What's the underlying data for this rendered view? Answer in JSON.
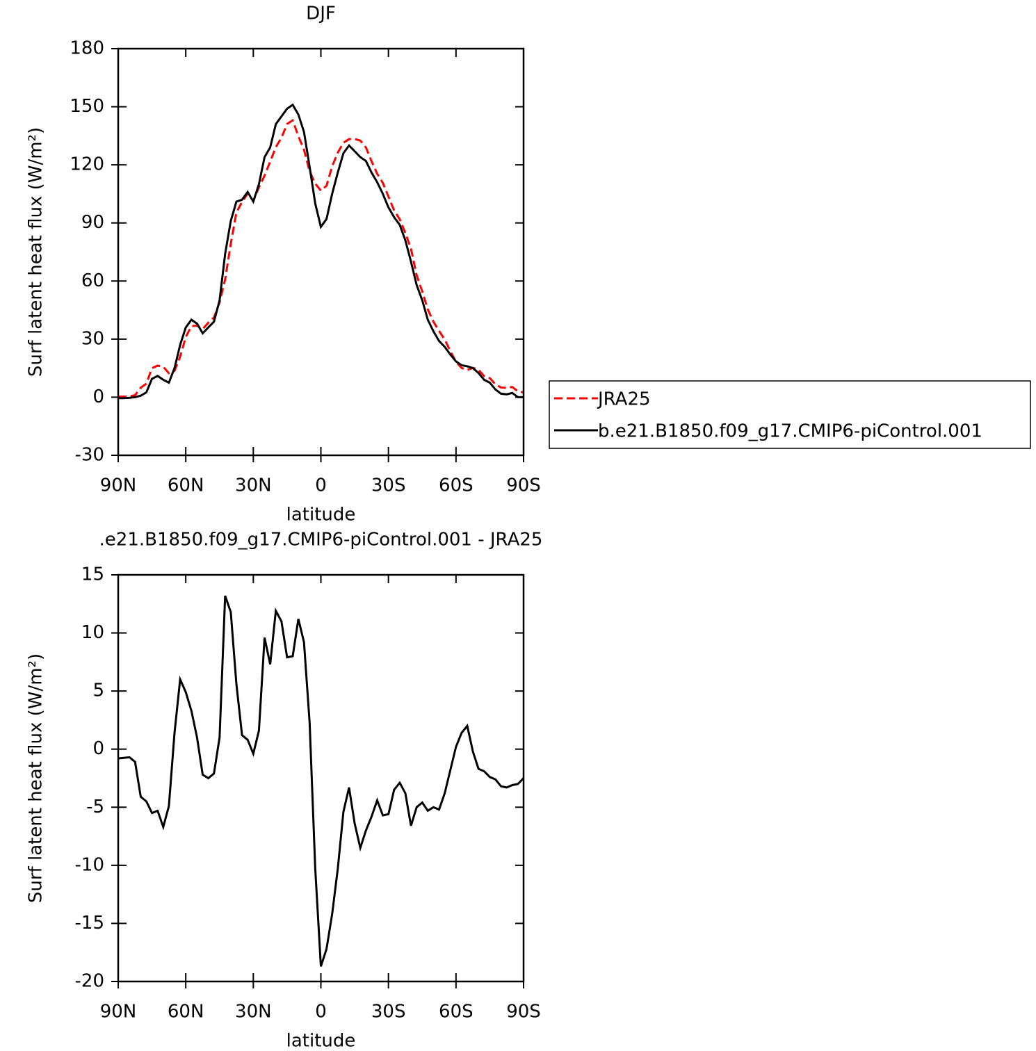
{
  "chart_data": [
    {
      "type": "line",
      "title": "DJF",
      "xlabel": "latitude",
      "ylabel": "Surf latent heat flux (W/m²)",
      "x": [
        90,
        87.5,
        85,
        82.5,
        80,
        77.5,
        75,
        72.5,
        70,
        67.5,
        65,
        62.5,
        60,
        57.5,
        55,
        52.5,
        50,
        47.5,
        45,
        42.5,
        40,
        37.5,
        35,
        32.5,
        30,
        27.5,
        25,
        22.5,
        20,
        17.5,
        15,
        12.5,
        10,
        7.5,
        5,
        2.5,
        0,
        -2.5,
        -5,
        -7.5,
        -10,
        -12.5,
        -15,
        -17.5,
        -20,
        -22.5,
        -25,
        -27.5,
        -30,
        -32.5,
        -35,
        -37.5,
        -40,
        -42.5,
        -45,
        -47.5,
        -50,
        -52.5,
        -55,
        -57.5,
        -60,
        -62.5,
        -65,
        -67.5,
        -70,
        -72.5,
        -75,
        -77.5,
        -80,
        -82.5,
        -85,
        -87.5,
        -90
      ],
      "series": [
        {
          "name": "JRA25",
          "color": "#ff0000",
          "dash": true,
          "values": [
            0.3,
            0.3,
            0.4,
            1.1,
            4.9,
            7,
            15,
            16.3,
            15.7,
            12.4,
            13.6,
            21,
            31.1,
            36.7,
            37,
            35.2,
            38.5,
            41.1,
            49,
            60.8,
            79.2,
            95.4,
            100.8,
            105.2,
            101.4,
            108.4,
            114.4,
            121.7,
            129.1,
            134,
            141.1,
            143,
            134.8,
            127.8,
            116.7,
            110.3,
            106.7,
            109.2,
            119.2,
            126.3,
            131.4,
            133.3,
            133.4,
            132.5,
            129,
            121.8,
            115.4,
            110.7,
            103.6,
            96.5,
            91.9,
            84.8,
            76.6,
            63,
            54.6,
            45.3,
            39,
            34.2,
            29.8,
            23.8,
            18.3,
            15.1,
            14,
            15.2,
            14.2,
            10.9,
            9.9,
            6.6,
            5,
            4.8,
            5.3,
            3,
            2.5
          ]
        },
        {
          "name": "b.e21.B1850.f09_g17.CMIP6-piControl.001",
          "color": "#000000",
          "dash": false,
          "values": [
            -0.5,
            -0.5,
            -0.3,
            0,
            0.8,
            2.5,
            9.5,
            11,
            9,
            7.5,
            15,
            27,
            36,
            40,
            38,
            33,
            36,
            39,
            50,
            74,
            91,
            101,
            102,
            106,
            101,
            110,
            124,
            129,
            141,
            145,
            149,
            151,
            146,
            137,
            119,
            100,
            88,
            92,
            105,
            116,
            126,
            130,
            127,
            124,
            122,
            116,
            111,
            105,
            98,
            93,
            89,
            81,
            70,
            58,
            50,
            40,
            34,
            29,
            26,
            22,
            18.5,
            16.5,
            16,
            15,
            12.5,
            9,
            7.5,
            4,
            1.8,
            1.5,
            2.2,
            0,
            0
          ]
        }
      ],
      "xlim": [
        90,
        -90
      ],
      "xticks": [
        {
          "value": 90,
          "label": "90N"
        },
        {
          "value": 60,
          "label": "60N"
        },
        {
          "value": 30,
          "label": "30N"
        },
        0,
        {
          "value": -30,
          "label": "30S"
        },
        {
          "value": -60,
          "label": "60S"
        },
        {
          "value": -90,
          "label": "90S"
        }
      ],
      "ylim": [
        -30,
        180
      ],
      "yticks": [
        -30,
        0,
        30,
        60,
        90,
        120,
        150,
        180
      ],
      "legend": "right"
    },
    {
      "type": "line",
      "title": ".e21.B1850.f09_g17.CMIP6-piControl.001 - JRA25",
      "xlabel": "latitude",
      "ylabel": "Surf latent heat flux (W/m²)",
      "x": [
        90,
        87.5,
        85,
        82.5,
        80,
        77.5,
        75,
        72.5,
        70,
        67.5,
        65,
        62.5,
        60,
        57.5,
        55,
        52.5,
        50,
        47.5,
        45,
        42.5,
        40,
        37.5,
        35,
        32.5,
        30,
        27.5,
        25,
        22.5,
        20,
        17.5,
        15,
        12.5,
        10,
        7.5,
        5,
        2.5,
        0,
        -2.5,
        -5,
        -7.5,
        -10,
        -12.5,
        -15,
        -17.5,
        -20,
        -22.5,
        -25,
        -27.5,
        -30,
        -32.5,
        -35,
        -37.5,
        -40,
        -42.5,
        -45,
        -47.5,
        -50,
        -52.5,
        -55,
        -57.5,
        -60,
        -62.5,
        -65,
        -67.5,
        -70,
        -72.5,
        -75,
        -77.5,
        -80,
        -82.5,
        -85,
        -87.5,
        -90
      ],
      "series": [
        {
          "color": "#000000",
          "dash": false,
          "values": [
            -0.8,
            -0.75,
            -0.7,
            -1.1,
            -4.1,
            -4.5,
            -5.5,
            -5.3,
            -6.7,
            -4.9,
            1.4,
            6,
            4.9,
            3.3,
            1,
            -2.2,
            -2.5,
            -2.1,
            1,
            13.2,
            11.8,
            5.6,
            1.2,
            0.8,
            -0.4,
            1.6,
            9.6,
            7.3,
            11.9,
            11,
            7.9,
            8,
            11.2,
            9.2,
            2.3,
            -10.3,
            -18.7,
            -17.2,
            -14.2,
            -10.3,
            -5.4,
            -3.3,
            -6.4,
            -8.5,
            -7,
            -5.8,
            -4.4,
            -5.7,
            -5.6,
            -3.5,
            -2.9,
            -3.8,
            -6.6,
            -5,
            -4.6,
            -5.3,
            -5,
            -5.2,
            -3.8,
            -1.8,
            0.2,
            1.4,
            2,
            -0.2,
            -1.7,
            -1.9,
            -2.4,
            -2.6,
            -3.2,
            -3.3,
            -3.1,
            -3,
            -2.5
          ]
        }
      ],
      "xlim": [
        90,
        -90
      ],
      "xticks": [
        {
          "value": 90,
          "label": "90N"
        },
        {
          "value": 60,
          "label": "60N"
        },
        {
          "value": 30,
          "label": "30N"
        },
        0,
        {
          "value": -30,
          "label": "30S"
        },
        {
          "value": -60,
          "label": "60S"
        },
        {
          "value": -90,
          "label": "90S"
        }
      ],
      "ylim": [
        -20,
        15
      ],
      "yticks": [
        -20,
        -15,
        -10,
        -5,
        0,
        5,
        10,
        15
      ]
    }
  ]
}
